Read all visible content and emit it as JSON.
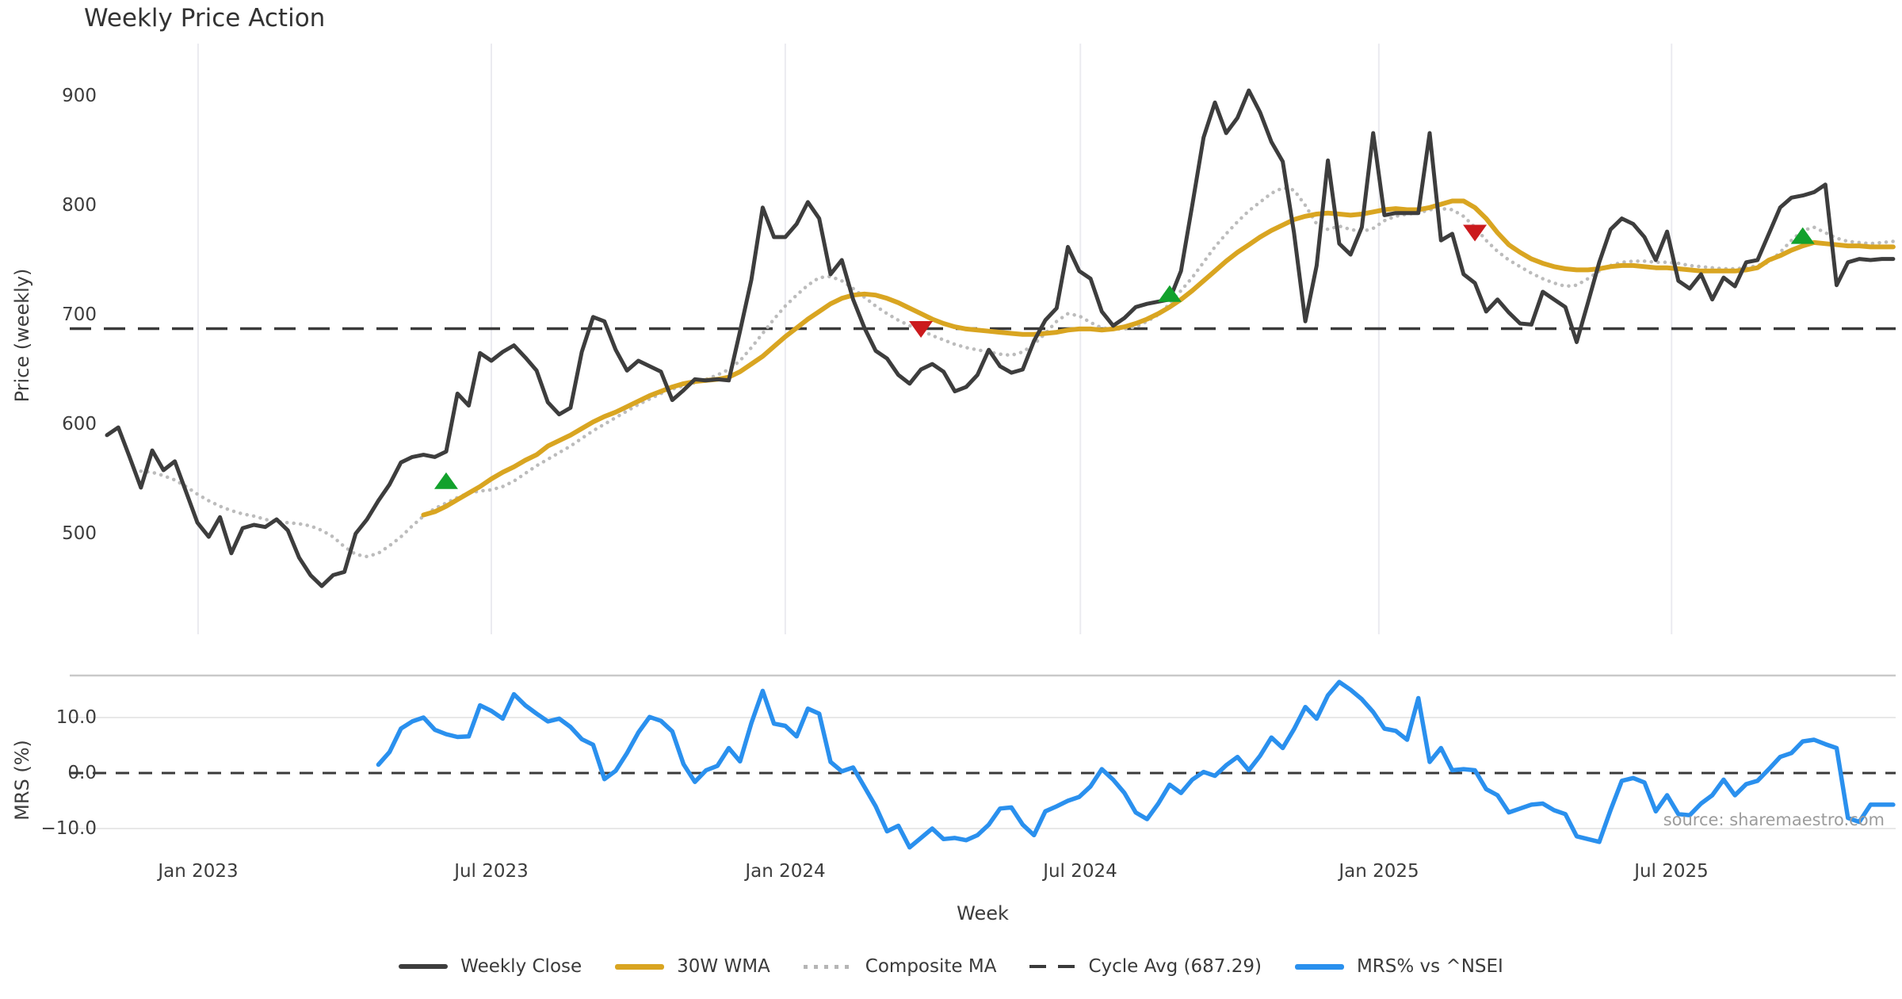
{
  "title": "Weekly Price Action",
  "watermark": "source: sharemaestro.com",
  "colors": {
    "weekly_close": "#3d3d3d",
    "wma_30w": "#d9a521",
    "composite_ma": "#bcbcbc",
    "cycle_avg": "#3a3a3a",
    "mrs": "#2a90ee",
    "buy_marker": "#12a12c",
    "sell_marker": "#cb1a1d",
    "gridline": "#ebebf0",
    "sub_gridline": "#e8e8e8",
    "sub_spine": "#c9c9c9"
  },
  "axes": {
    "price_ylabel": "Price (weekly)",
    "mrs_ylabel": "MRS (%)",
    "xlabel": "Week",
    "price_ticks": [
      {
        "label": "900",
        "value": 900
      },
      {
        "label": "800",
        "value": 800
      },
      {
        "label": "700",
        "value": 700
      },
      {
        "label": "600",
        "value": 600
      },
      {
        "label": "500",
        "value": 500
      }
    ],
    "mrs_ticks": [
      {
        "label": "10.0",
        "value": 10
      },
      {
        "label": "0.0",
        "value": 0
      },
      {
        "label": "−10.0",
        "value": -10
      }
    ],
    "x_ticks": [
      {
        "label": "Jan 2023",
        "week": 8.06
      },
      {
        "label": "Jul 2023",
        "week": 34.0
      },
      {
        "label": "Jan 2024",
        "week": 60.0
      },
      {
        "label": "Jul 2024",
        "week": 86.1
      },
      {
        "label": "Jan 2025",
        "week": 112.5
      },
      {
        "label": "Jul 2025",
        "week": 138.4
      }
    ]
  },
  "legend": {
    "items": [
      {
        "label": "Weekly Close",
        "swatch": "solid",
        "color": "#3d3d3d"
      },
      {
        "label": "30W WMA",
        "swatch": "solid",
        "color": "#d9a521"
      },
      {
        "label": "Composite MA",
        "swatch": "dotted",
        "color": "#b5b5b5"
      },
      {
        "label": "Cycle Avg (687.29)",
        "swatch": "dashed",
        "color": "#3a3a3a"
      },
      {
        "label": "MRS% vs ^NSEI",
        "swatch": "solid",
        "color": "#2a90ee"
      }
    ]
  },
  "chart_data": [
    {
      "type": "line",
      "panel": "price",
      "title": "Weekly Price Action",
      "xlabel": "Week",
      "ylabel": "Price (weekly)",
      "x_unit": "weeks from Nov 2022",
      "x_range_weeks": [
        0,
        158
      ],
      "ylim": [
        408,
        948
      ],
      "grid": "vertical-only",
      "cycle_avg": 687.29,
      "series": [
        {
          "name": "Weekly Close",
          "style": "solid",
          "color": "#3d3d3d",
          "start_week": 0,
          "values": [
            590,
            597,
            570,
            542,
            576,
            558,
            566,
            538,
            510,
            497,
            515,
            482,
            505,
            508,
            506,
            513,
            503,
            478,
            462,
            452,
            462,
            465,
            500,
            513,
            530,
            545,
            565,
            570,
            572,
            570,
            575,
            628,
            617,
            665,
            658,
            666,
            672,
            661,
            649,
            620,
            609,
            615,
            666,
            698,
            694,
            668,
            649,
            658,
            653,
            648,
            622,
            631,
            641,
            640,
            641,
            640,
            685,
            732,
            798,
            771,
            771,
            783,
            803,
            788,
            737,
            750,
            714,
            688,
            667,
            660,
            645,
            637,
            650,
            655,
            648,
            630,
            634,
            645,
            668,
            653,
            647,
            650,
            676,
            695,
            706,
            762,
            740,
            733,
            703,
            690,
            697,
            707,
            710,
            712,
            714,
            740,
            800,
            862,
            894,
            866,
            880,
            905,
            885,
            858,
            840,
            775,
            694,
            745,
            841,
            765,
            755,
            780,
            866,
            791,
            793,
            793,
            793,
            866,
            768,
            774,
            737,
            729,
            703,
            714,
            702,
            692,
            691,
            721,
            714,
            707,
            675,
            711,
            748,
            778,
            788,
            783,
            771,
            750,
            776,
            731,
            724,
            737,
            714,
            734,
            726,
            748,
            750,
            774,
            798,
            807,
            809,
            812,
            819,
            727,
            748,
            751,
            750,
            751,
            751
          ]
        },
        {
          "name": "30W WMA",
          "style": "solid",
          "color": "#d9a521",
          "start_week": 28,
          "values": [
            517,
            520,
            525,
            531,
            537,
            543,
            550,
            556,
            561,
            567,
            572,
            580,
            585,
            590,
            596,
            602,
            607,
            611,
            616,
            621,
            626,
            630,
            634,
            637,
            639,
            640,
            641,
            643,
            648,
            655,
            662,
            671,
            680,
            688,
            696,
            703,
            710,
            715,
            718,
            719,
            718,
            715,
            711,
            706,
            701,
            696,
            692,
            689,
            687,
            686,
            685,
            684,
            683,
            682,
            682,
            683,
            684,
            686,
            687,
            687,
            686,
            687,
            689,
            692,
            696,
            701,
            707,
            714,
            722,
            731,
            740,
            749,
            757,
            764,
            771,
            777,
            782,
            787,
            790,
            792,
            793,
            792,
            791,
            792,
            794,
            796,
            797,
            796,
            796,
            798,
            801,
            804,
            804,
            798,
            788,
            775,
            764,
            757,
            751,
            747,
            744,
            742,
            741,
            741,
            742,
            744,
            745,
            745,
            744,
            743,
            743,
            742,
            741,
            740,
            740,
            740,
            740,
            741,
            743,
            750,
            754,
            759,
            763,
            766,
            765,
            764,
            763,
            763,
            762,
            762,
            762
          ]
        },
        {
          "name": "Composite MA",
          "style": "dotted",
          "color": "#bcbcbc",
          "start_week": 3,
          "values": [
            557,
            556,
            553,
            549,
            543,
            536,
            530,
            525,
            521,
            518,
            516,
            513,
            511,
            510,
            509,
            507,
            503,
            497,
            488,
            481,
            479,
            482,
            489,
            497,
            507,
            516,
            523,
            528,
            533,
            537,
            539,
            540,
            543,
            548,
            555,
            562,
            568,
            574,
            580,
            587,
            594,
            600,
            606,
            612,
            618,
            623,
            628,
            632,
            635,
            638,
            641,
            645,
            650,
            658,
            670,
            683,
            696,
            708,
            718,
            727,
            734,
            735,
            731,
            724,
            716,
            708,
            701,
            695,
            690,
            686,
            681,
            677,
            673,
            670,
            668,
            666,
            664,
            663,
            666,
            673,
            683,
            694,
            701,
            699,
            693,
            688,
            687,
            687,
            689,
            694,
            700,
            710,
            722,
            734,
            748,
            762,
            774,
            785,
            795,
            803,
            811,
            816,
            814,
            800,
            783,
            778,
            781,
            778,
            776,
            779,
            786,
            790,
            792,
            793,
            796,
            797,
            796,
            790,
            780,
            768,
            758,
            750,
            744,
            738,
            733,
            729,
            726,
            727,
            733,
            740,
            745,
            748,
            749,
            749,
            748,
            748,
            747,
            745,
            744,
            743,
            742,
            742,
            743,
            745,
            748,
            757,
            768,
            777,
            780,
            775,
            770,
            767,
            766,
            765,
            766,
            767
          ]
        },
        {
          "name": "Cycle Avg (687.29)",
          "style": "dashed",
          "color": "#3a3a3a",
          "constant": 687.29
        }
      ],
      "markers": {
        "buy_signals": {
          "shape": "triangle-up",
          "color": "#12a12c",
          "points": [
            {
              "week": 30,
              "value": 548
            },
            {
              "week": 94,
              "value": 719
            },
            {
              "week": 150,
              "value": 772
            }
          ]
        },
        "sell_signals": {
          "shape": "triangle-down",
          "color": "#cb1a1d",
          "points": [
            {
              "week": 72,
              "value": 687
            },
            {
              "week": 121,
              "value": 775
            }
          ]
        }
      }
    },
    {
      "type": "line",
      "panel": "mrs",
      "ylabel": "MRS (%)",
      "x_range_weeks": [
        0,
        158
      ],
      "ylim": [
        -14.3,
        17.6
      ],
      "zero_line": 0,
      "grid": "horizontal-only",
      "series": [
        {
          "name": "MRS% vs ^NSEI",
          "style": "solid",
          "color": "#2a90ee",
          "start_week": 24,
          "values": [
            1.5,
            3.8,
            8.0,
            9.3,
            10.0,
            7.8,
            7.0,
            6.5,
            6.6,
            12.2,
            11.2,
            9.8,
            14.2,
            12.2,
            10.7,
            9.3,
            9.8,
            8.3,
            6.1,
            5.1,
            -1.1,
            0.4,
            3.6,
            7.3,
            10.1,
            9.4,
            7.5,
            1.6,
            -1.6,
            0.5,
            1.3,
            4.5,
            2.1,
            9.0,
            14.8,
            8.9,
            8.5,
            6.6,
            11.6,
            10.7,
            2.0,
            0.3,
            1.0,
            -2.5,
            -6.0,
            -10.5,
            -9.5,
            -13.4,
            -11.7,
            -10.0,
            -11.9,
            -11.7,
            -12.1,
            -11.2,
            -9.3,
            -6.4,
            -6.2,
            -9.3,
            -11.2,
            -6.9,
            -6.0,
            -5.0,
            -4.3,
            -2.4,
            0.7,
            -1.2,
            -3.6,
            -7.1,
            -8.3,
            -5.5,
            -2.1,
            -3.6,
            -1.2,
            0.2,
            -0.5,
            1.4,
            2.9,
            0.5,
            3.1,
            6.4,
            4.5,
            7.9,
            11.9,
            9.8,
            14.0,
            16.4,
            15.0,
            13.3,
            11.0,
            8.0,
            7.6,
            6.0,
            13.5,
            2.0,
            4.5,
            0.5,
            0.7,
            0.5,
            -2.9,
            -4.0,
            -7.1,
            -6.4,
            -5.7,
            -5.5,
            -6.7,
            -7.4,
            -11.4,
            -11.9,
            -12.4,
            -6.7,
            -1.4,
            -0.9,
            -1.7,
            -6.9,
            -4.0,
            -7.4,
            -7.6,
            -5.5,
            -4.0,
            -1.2,
            -4.0,
            -2.0,
            -1.4,
            0.7,
            2.9,
            3.6,
            5.7,
            6.0,
            5.2,
            4.5,
            -8.1,
            -8.8,
            -5.7,
            -5.7,
            -5.7
          ]
        }
      ]
    }
  ]
}
